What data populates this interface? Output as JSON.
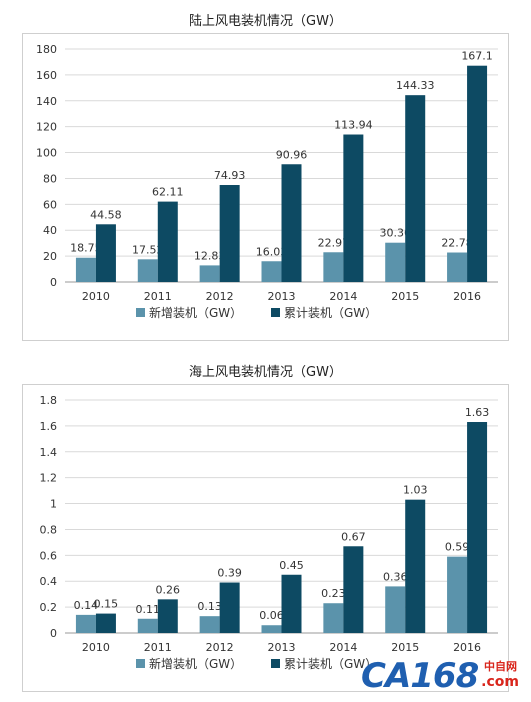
{
  "chart_data": [
    {
      "type": "bar",
      "title": "陆上风电装机情况（GW）",
      "categories": [
        "2010",
        "2011",
        "2012",
        "2013",
        "2014",
        "2015",
        "2016"
      ],
      "series": [
        {
          "name": "新增装机（GW）",
          "color": "#5b93ab",
          "values": [
            18.75,
            17.52,
            12.83,
            16.03,
            22.97,
            30.36,
            22.78
          ],
          "labels": [
            "18.75",
            "17.52",
            "12.83",
            "16.03",
            "22.97",
            "30.36",
            "22.78"
          ]
        },
        {
          "name": "累计装机（GW）",
          "color": "#0d4a63",
          "values": [
            44.58,
            62.11,
            74.93,
            90.96,
            113.94,
            144.33,
            167.1
          ],
          "labels": [
            "44.58",
            "62.11",
            "74.93",
            "90.96",
            "113.94",
            "144.33",
            "167.1"
          ]
        }
      ],
      "ylim": [
        0,
        180
      ],
      "yticks": [
        "0",
        "20",
        "40",
        "60",
        "80",
        "100",
        "120",
        "140",
        "160",
        "180"
      ],
      "grid": true,
      "legend": "bottom-center"
    },
    {
      "type": "bar",
      "title": "海上风电装机情况（GW）",
      "categories": [
        "2010",
        "2011",
        "2012",
        "2013",
        "2014",
        "2015",
        "2016"
      ],
      "series": [
        {
          "name": "新增装机（GW）",
          "color": "#5b93ab",
          "values": [
            0.14,
            0.11,
            0.13,
            0.06,
            0.23,
            0.36,
            0.59
          ],
          "labels": [
            "0.14",
            "0.11",
            "0.13",
            "0.06",
            "0.23",
            "0.36",
            "0.59"
          ]
        },
        {
          "name": "累计装机（GW）",
          "color": "#0d4a63",
          "values": [
            0.15,
            0.26,
            0.39,
            0.45,
            0.67,
            1.03,
            1.63
          ],
          "labels": [
            "0.15",
            "0.26",
            "0.39",
            "0.45",
            "0.67",
            "1.03",
            "1.63"
          ]
        }
      ],
      "ylim": [
        0,
        1.8
      ],
      "yticks": [
        "0",
        "0.2",
        "0.4",
        "0.6",
        "0.8",
        "1",
        "1.2",
        "1.4",
        "1.6",
        "1.8"
      ],
      "grid": true,
      "legend": "bottom-center"
    }
  ],
  "watermark": {
    "main": "CA168",
    "cn": "中自网",
    "com": ".com"
  }
}
